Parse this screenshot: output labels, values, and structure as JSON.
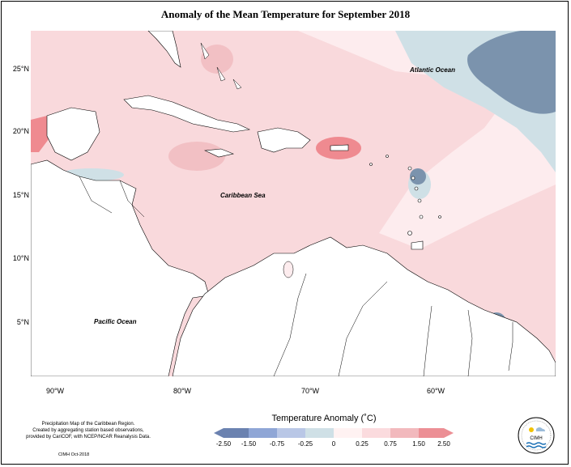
{
  "title": "Anomaly of the Mean Temperature for September 2018",
  "lat_labels": [
    "25°N",
    "20°N",
    "15°N",
    "10°N",
    "5°N"
  ],
  "lon_labels": [
    "90°W",
    "80°W",
    "70°W",
    "60°W"
  ],
  "places": {
    "atlantic": "Atlantic Ocean",
    "caribbean": "Caribbean Sea",
    "pacific": "Pacific Ocean"
  },
  "credits": {
    "line1": "Precipitation Map of the Caribbean Region.",
    "line2": "Created by aggregating station based observations,",
    "line3": "provided by CariCOF, with NCEP/NCAR Reanalysis Data.",
    "date": "CIMH Oct-2018"
  },
  "legend": {
    "title": "Temperature Anomaly (˚C)",
    "ticks": [
      "-2.50",
      "-1.50",
      "-0.75",
      "-0.25",
      "0",
      "0.25",
      "0.75",
      "1.50",
      "2.50"
    ],
    "colors": [
      "#6b82b0",
      "#8fa6d6",
      "#b9c7e6",
      "#cfe0e6",
      "#fff2f2",
      "#fbdbde",
      "#f2b9bd",
      "#ec8f95"
    ]
  },
  "logo": {
    "text": "CIMH"
  },
  "colors": {
    "land": "#ffffff",
    "warm_light": "#f9d9dc",
    "warm_mid": "#f2c0c4",
    "warm_strong": "#ef8a90",
    "cool_light": "#cfe0e6",
    "cool_strong": "#7b93ad"
  }
}
